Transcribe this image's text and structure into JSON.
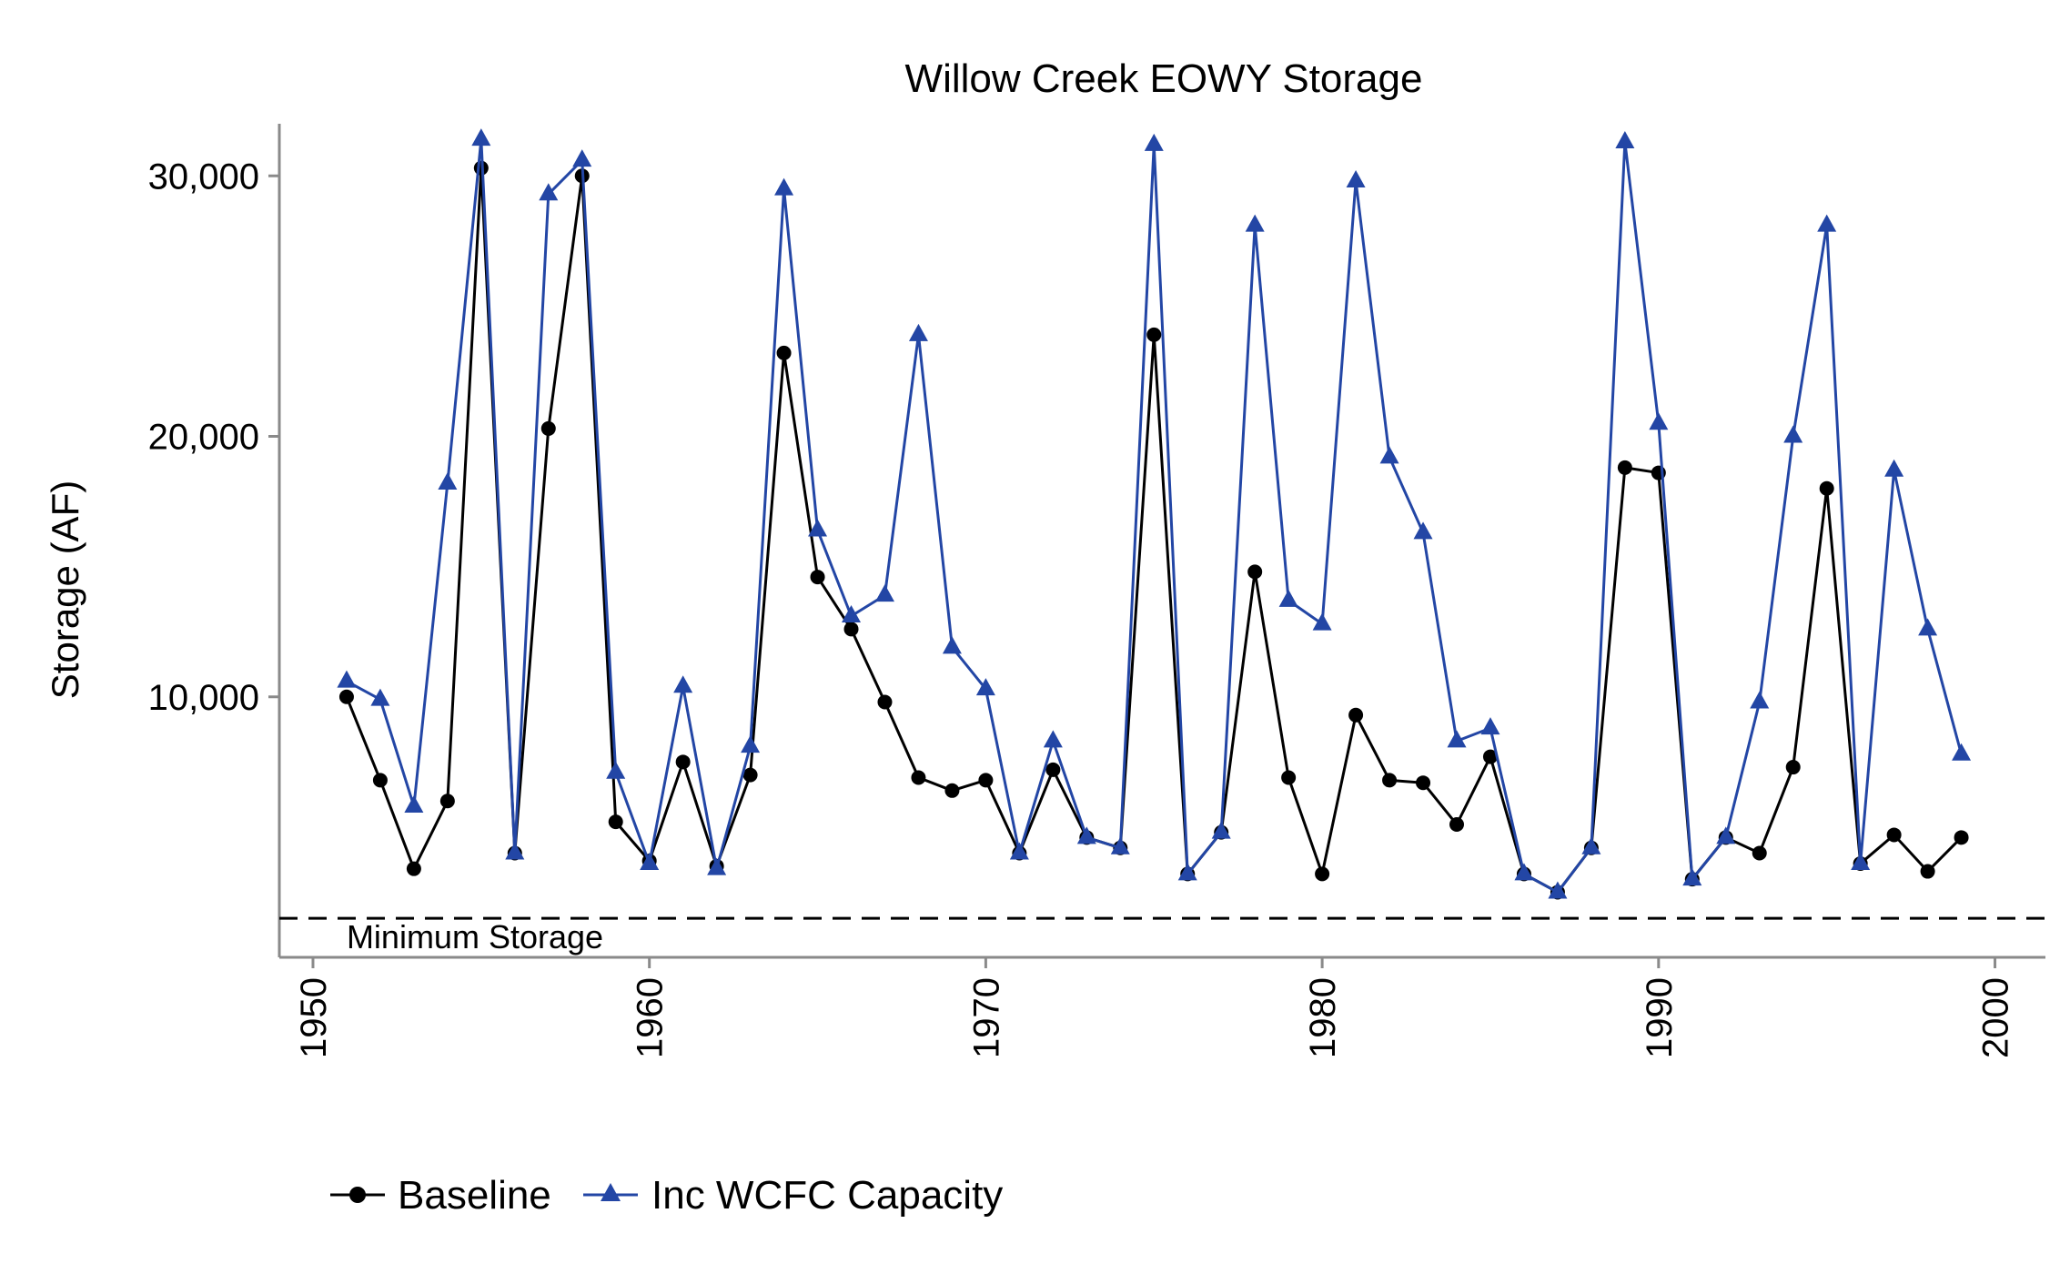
{
  "chart_data": {
    "type": "line",
    "title": "Willow Creek EOWY Storage",
    "xlabel": "",
    "ylabel": "Storage (AF)",
    "xlim": [
      1949,
      2001.5
    ],
    "ylim": [
      0,
      32000
    ],
    "x_ticks": [
      1950,
      1960,
      1970,
      1980,
      1990,
      2000
    ],
    "x_tick_labels": [
      "1950",
      "1960",
      "1970",
      "1980",
      "1990",
      "2000"
    ],
    "y_ticks": [
      10000,
      20000,
      30000
    ],
    "y_tick_labels": [
      "10,000",
      "20,000",
      "30,000"
    ],
    "grid": false,
    "legend_position": "bottom-left",
    "reference_line": {
      "y": 1500,
      "label": "Minimum Storage",
      "style": "dashed"
    },
    "x": [
      1951,
      1952,
      1953,
      1954,
      1955,
      1956,
      1957,
      1958,
      1959,
      1960,
      1961,
      1962,
      1963,
      1964,
      1965,
      1966,
      1967,
      1968,
      1969,
      1970,
      1971,
      1972,
      1973,
      1974,
      1975,
      1976,
      1977,
      1978,
      1979,
      1980,
      1981,
      1982,
      1983,
      1984,
      1985,
      1986,
      1987,
      1988,
      1989,
      1990,
      1991,
      1992,
      1993,
      1994,
      1995,
      1996,
      1997,
      1998,
      1999
    ],
    "series": [
      {
        "name": "Baseline",
        "color": "#000000",
        "marker": "circle",
        "values": [
          10000,
          6800,
          3400,
          6000,
          30300,
          4000,
          20300,
          30000,
          5200,
          3700,
          7500,
          3500,
          7000,
          23200,
          14600,
          12600,
          9800,
          6900,
          6400,
          6800,
          4000,
          7200,
          4600,
          4200,
          23900,
          3200,
          4800,
          14800,
          6900,
          3200,
          9300,
          6800,
          6700,
          5100,
          7700,
          3200,
          2500,
          4200,
          18800,
          18600,
          3000,
          4600,
          4000,
          7300,
          18000,
          3600,
          4700,
          3300,
          4600
        ]
      },
      {
        "name": "Inc WCFC Capacity",
        "color": "#2346a5",
        "marker": "triangle",
        "values": [
          10600,
          9900,
          5800,
          18200,
          31400,
          4000,
          29300,
          30600,
          7100,
          3600,
          10400,
          3400,
          8100,
          29500,
          16400,
          13100,
          13900,
          23900,
          11900,
          10300,
          4000,
          8300,
          4600,
          4200,
          31200,
          3200,
          4800,
          28100,
          13700,
          12800,
          29800,
          19200,
          16300,
          8300,
          8800,
          3200,
          2500,
          4200,
          31300,
          20500,
          3000,
          4600,
          9800,
          20000,
          28100,
          3600,
          18700,
          12600,
          7800
        ]
      }
    ]
  }
}
